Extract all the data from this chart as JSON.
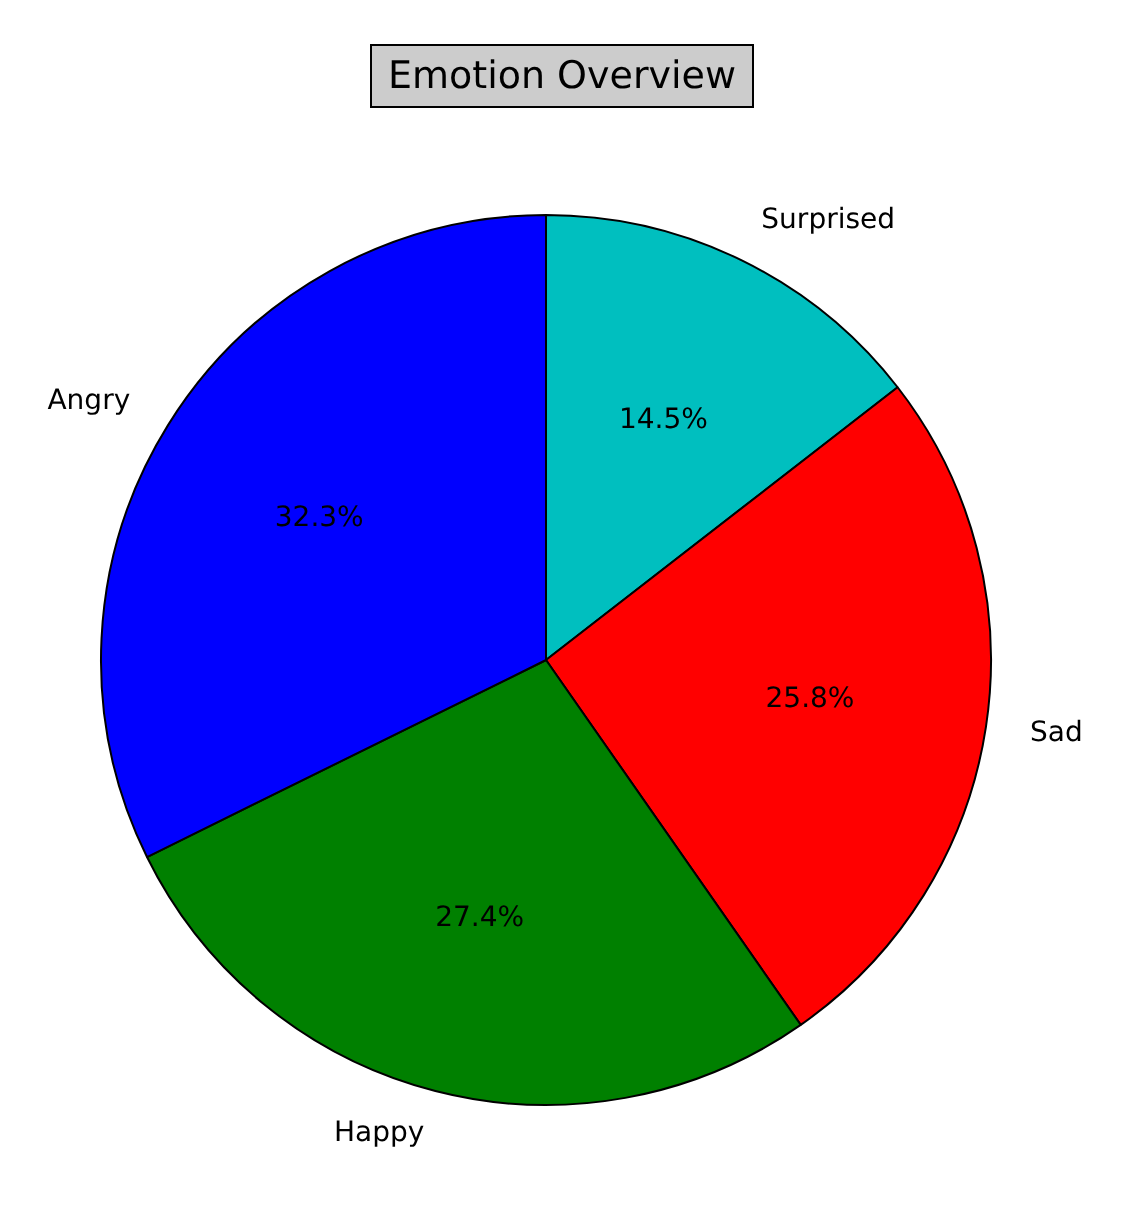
{
  "chart_data": {
    "type": "pie",
    "title": "Emotion Overview",
    "categories": [
      "Surprised",
      "Sad",
      "Happy",
      "Angry"
    ],
    "values": [
      14.5,
      25.8,
      27.4,
      32.3
    ],
    "colors": [
      "#00bfbf",
      "#ff0000",
      "#008000",
      "#0000ff"
    ],
    "value_labels": [
      "14.5%",
      "25.8%",
      "27.4%",
      "32.3%"
    ],
    "legend": false
  }
}
